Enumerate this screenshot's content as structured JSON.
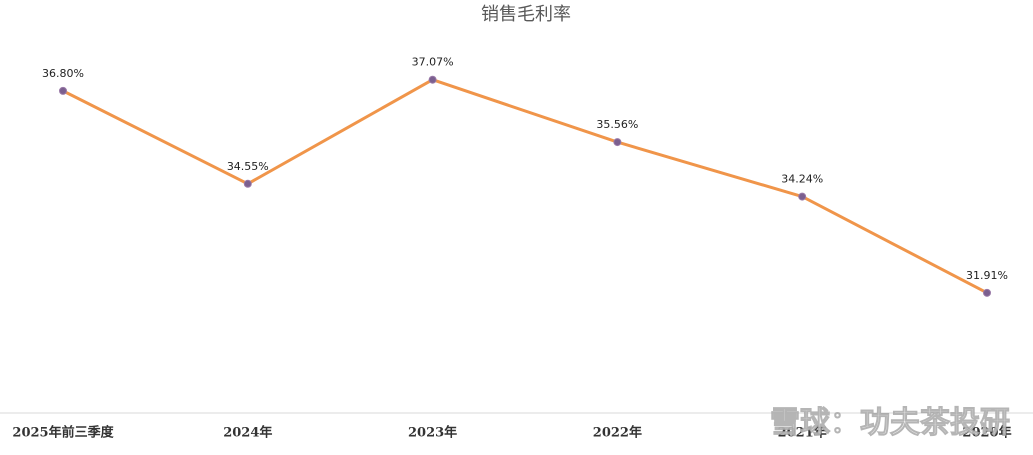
{
  "chart_data": {
    "type": "line",
    "title": "销售毛利率",
    "categories": [
      "2025年前三季度",
      "2024年",
      "2023年",
      "2022年",
      "2021年",
      "2020年"
    ],
    "series": [
      {
        "name": "销售毛利率",
        "color": "#f0954a",
        "values": [
          36.8,
          34.55,
          37.07,
          35.56,
          34.24,
          31.91
        ],
        "value_labels": [
          "36.80%",
          "34.55%",
          "37.07%",
          "35.56%",
          "34.24%",
          "31.91%"
        ]
      }
    ],
    "ylim": [
      29,
      39
    ],
    "watermark": "雪球：功夫茶投研"
  }
}
